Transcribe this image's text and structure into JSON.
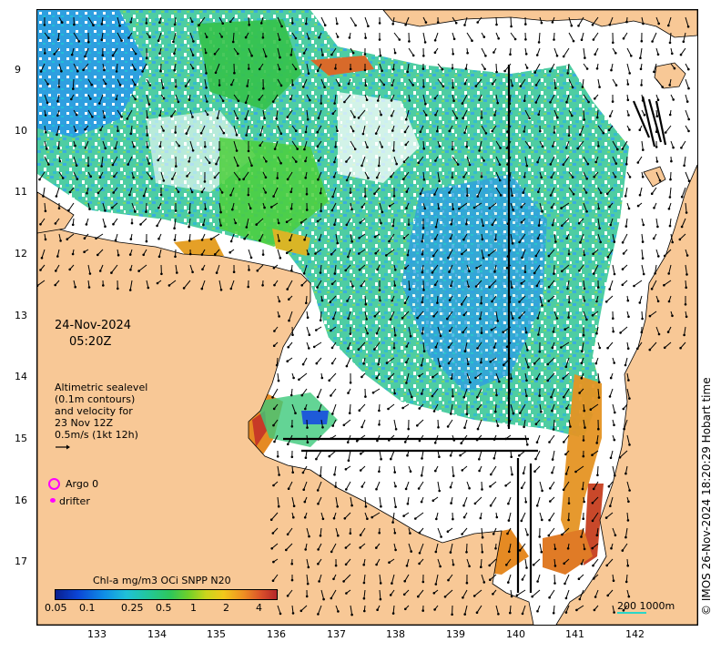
{
  "map": {
    "lat_ticks": [
      "9",
      "10",
      "11",
      "12",
      "13",
      "14",
      "15",
      "16",
      "17"
    ],
    "lon_ticks": [
      "133",
      "134",
      "135",
      "136",
      "137",
      "138",
      "139",
      "140",
      "141",
      "142"
    ],
    "colors": {
      "land": "#f8c896",
      "no_data": "#ffffff",
      "coastline": "#000000",
      "vector": "#000000",
      "argo": "#ff00ff",
      "drifter": "#ff00ff",
      "scale_bar": "#2bd6c8"
    }
  },
  "annotations": {
    "date": "24-Nov-2024",
    "time": "05:20Z",
    "altimetry_line1": "Altimetric sealevel",
    "altimetry_line2": "(0.1m contours)",
    "altimetry_line3": "and velocity for",
    "altimetry_line4": "23 Nov 12Z",
    "altimetry_line5": "0.5m/s (1kt 12h)"
  },
  "legend": {
    "argo_label": "Argo 0",
    "drifter_label": "drifter",
    "colorbar_title": "Chl-a mg/m3 OCi SNPP N20",
    "colorbar_ticks": [
      "0.05",
      "0.1",
      "0.25",
      "0.5",
      "1",
      "2",
      "4"
    ],
    "scale_label": "200  1000m"
  },
  "copyright": "© IMOS 26-Nov-2024 18:20:29 Hobart time"
}
